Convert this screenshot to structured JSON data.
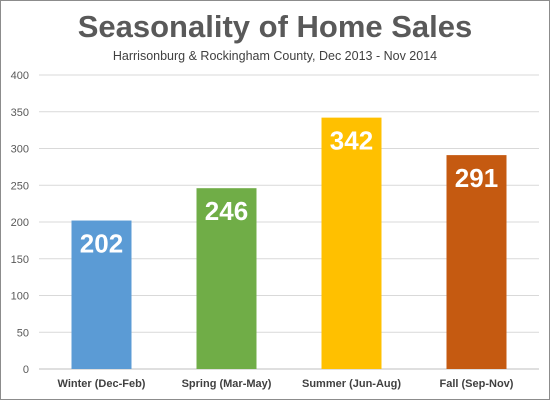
{
  "chart_data": {
    "type": "bar",
    "title": "Seasonality of Home Sales",
    "subtitle": "Harrisonburg & Rockingham County, Dec 2013 - Nov 2014",
    "categories": [
      "Winter (Dec-Feb)",
      "Spring (Mar-May)",
      "Summer (Jun-Aug)",
      "Fall (Sep-Nov)"
    ],
    "values": [
      202,
      246,
      342,
      291
    ],
    "data_labels": [
      "202",
      "246",
      "342",
      "291"
    ],
    "colors": [
      "#5b9bd5",
      "#70ad47",
      "#ffc000",
      "#c55a11"
    ],
    "y_ticks": [
      "0",
      "50",
      "100",
      "150",
      "200",
      "250",
      "300",
      "350",
      "400"
    ],
    "ylim": [
      0,
      400
    ],
    "grid": true,
    "legend": "none"
  }
}
